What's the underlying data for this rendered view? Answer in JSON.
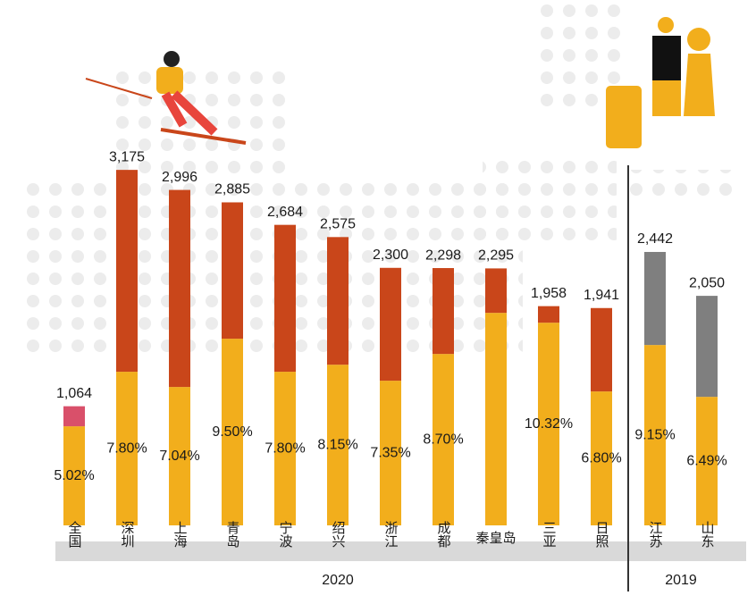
{
  "chart_data": {
    "type": "stacked_bar",
    "categories": [
      "全国",
      "深圳",
      "上海",
      "青岛",
      "宁波",
      "绍兴",
      "浙江",
      "成都",
      "秦皇岛",
      "三亚",
      "日照",
      "江苏",
      "山东"
    ],
    "series": [
      {
        "color": "#f2ae1c",
        "values": [
          885,
          1372,
          1236,
          1667,
          1372,
          1435,
          1292,
          1531,
          1898,
          1810,
          1196,
          1611,
          1148
        ]
      },
      {
        "colors": [
          "#d9506a",
          "#c9461a",
          "#c9461a",
          "#c9461a",
          "#c9461a",
          "#c9461a",
          "#c9461a",
          "#c9461a",
          "#c9461a",
          "#c9461a",
          "#c9461a",
          "#7f7f7f",
          "#7f7f7f"
        ],
        "values": [
          179,
          1803,
          1760,
          1218,
          1312,
          1140,
          1008,
          767,
          397,
          148,
          745,
          831,
          902
        ]
      }
    ],
    "totals": [
      1064,
      3175,
      2996,
      2885,
      2684,
      2575,
      2300,
      2298,
      2295,
      1958,
      1941,
      2442,
      2050
    ],
    "total_labels": [
      "1,064",
      "3,175",
      "2,996",
      "2,885",
      "2,684",
      "2,575",
      "2,300",
      "2,298",
      "2,295",
      "1,958",
      "1,941",
      "2,442",
      "2,050"
    ],
    "rate_labels": [
      "5.02%",
      "7.80%",
      "7.04%",
      "9.50%",
      "7.80%",
      "8.15%",
      "7.35%",
      "8.70%",
      null,
      "10.32%",
      "6.80%",
      "9.15%",
      "6.49%"
    ],
    "groups": [
      "2020",
      "2019"
    ],
    "ylim": [
      0,
      3200
    ]
  }
}
